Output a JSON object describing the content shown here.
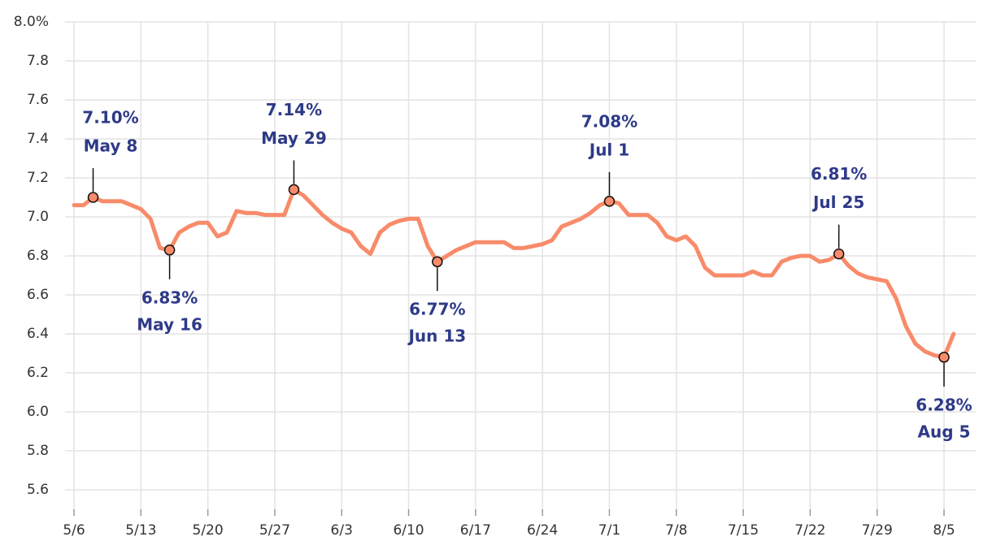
{
  "chart_data": {
    "type": "line",
    "x": [
      "5/6",
      "5/7",
      "5/8",
      "5/9",
      "5/10",
      "5/11",
      "5/12",
      "5/13",
      "5/14",
      "5/15",
      "5/16",
      "5/17",
      "5/18",
      "5/19",
      "5/20",
      "5/21",
      "5/22",
      "5/23",
      "5/24",
      "5/25",
      "5/26",
      "5/27",
      "5/28",
      "5/29",
      "5/30",
      "5/31",
      "6/1",
      "6/2",
      "6/3",
      "6/4",
      "6/5",
      "6/6",
      "6/7",
      "6/8",
      "6/9",
      "6/10",
      "6/11",
      "6/12",
      "6/13",
      "6/14",
      "6/15",
      "6/16",
      "6/17",
      "6/18",
      "6/19",
      "6/20",
      "6/21",
      "6/22",
      "6/23",
      "6/24",
      "6/25",
      "6/26",
      "6/27",
      "6/28",
      "6/29",
      "6/30",
      "7/1",
      "7/2",
      "7/3",
      "7/4",
      "7/5",
      "7/6",
      "7/7",
      "7/8",
      "7/9",
      "7/10",
      "7/11",
      "7/12",
      "7/13",
      "7/14",
      "7/15",
      "7/16",
      "7/17",
      "7/18",
      "7/19",
      "7/20",
      "7/21",
      "7/22",
      "7/23",
      "7/24",
      "7/25",
      "7/26",
      "7/27",
      "7/28",
      "7/29",
      "7/30",
      "7/31",
      "8/1",
      "8/2",
      "8/3",
      "8/4",
      "8/5",
      "8/6"
    ],
    "series": [
      {
        "color": "#f88b6a",
        "values": [
          7.06,
          7.06,
          7.1,
          7.08,
          7.08,
          7.08,
          7.06,
          7.04,
          6.99,
          6.84,
          6.83,
          6.92,
          6.95,
          6.97,
          6.97,
          6.9,
          6.92,
          7.03,
          7.02,
          7.02,
          7.01,
          7.01,
          7.01,
          7.14,
          7.11,
          7.06,
          7.01,
          6.97,
          6.94,
          6.92,
          6.85,
          6.81,
          6.92,
          6.96,
          6.98,
          6.99,
          6.99,
          6.85,
          6.77,
          6.8,
          6.83,
          6.85,
          6.87,
          6.87,
          6.87,
          6.87,
          6.84,
          6.84,
          6.85,
          6.86,
          6.88,
          6.95,
          6.97,
          6.99,
          7.02,
          7.06,
          7.08,
          7.07,
          7.01,
          7.01,
          7.01,
          6.97,
          6.9,
          6.88,
          6.9,
          6.85,
          6.74,
          6.7,
          6.7,
          6.7,
          6.7,
          6.72,
          6.7,
          6.7,
          6.77,
          6.79,
          6.8,
          6.8,
          6.77,
          6.78,
          6.81,
          6.75,
          6.71,
          6.69,
          6.68,
          6.67,
          6.58,
          6.44,
          6.35,
          6.31,
          6.29,
          6.28,
          6.4
        ]
      }
    ],
    "xticks": [
      "5/6",
      "5/13",
      "5/20",
      "5/27",
      "6/3",
      "6/10",
      "6/17",
      "6/24",
      "7/1",
      "7/8",
      "7/15",
      "7/22",
      "7/29",
      "8/5"
    ],
    "ylim": [
      5.5,
      8.0
    ],
    "yticks": [
      5.6,
      5.8,
      {
        "value": 6,
        "label": "6.0"
      },
      6.2,
      6.4,
      6.6,
      6.8,
      {
        "value": 7,
        "label": "7.0"
      },
      7.2,
      7.4,
      7.6,
      7.8,
      {
        "value": 8,
        "label": "8.0%"
      }
    ],
    "grid": true,
    "annotations": [
      {
        "x": "5/8",
        "value": 7.1,
        "label": "7.10%",
        "date": "May 8",
        "position": "above"
      },
      {
        "x": "5/16",
        "value": 6.83,
        "label": "6.83%",
        "date": "May 16",
        "position": "below"
      },
      {
        "x": "5/29",
        "value": 7.14,
        "label": "7.14%",
        "date": "May 29",
        "position": "above"
      },
      {
        "x": "6/13",
        "value": 6.77,
        "label": "6.77%",
        "date": "Jun 13",
        "position": "below"
      },
      {
        "x": "7/1",
        "value": 7.08,
        "label": "7.08%",
        "date": "Jul 1",
        "position": "above"
      },
      {
        "x": "7/25",
        "value": 6.81,
        "label": "6.81%",
        "date": "Jul 25",
        "position": "above"
      },
      {
        "x": "8/5",
        "value": 6.28,
        "label": "6.28%",
        "date": "Aug 5",
        "position": "below"
      }
    ]
  }
}
